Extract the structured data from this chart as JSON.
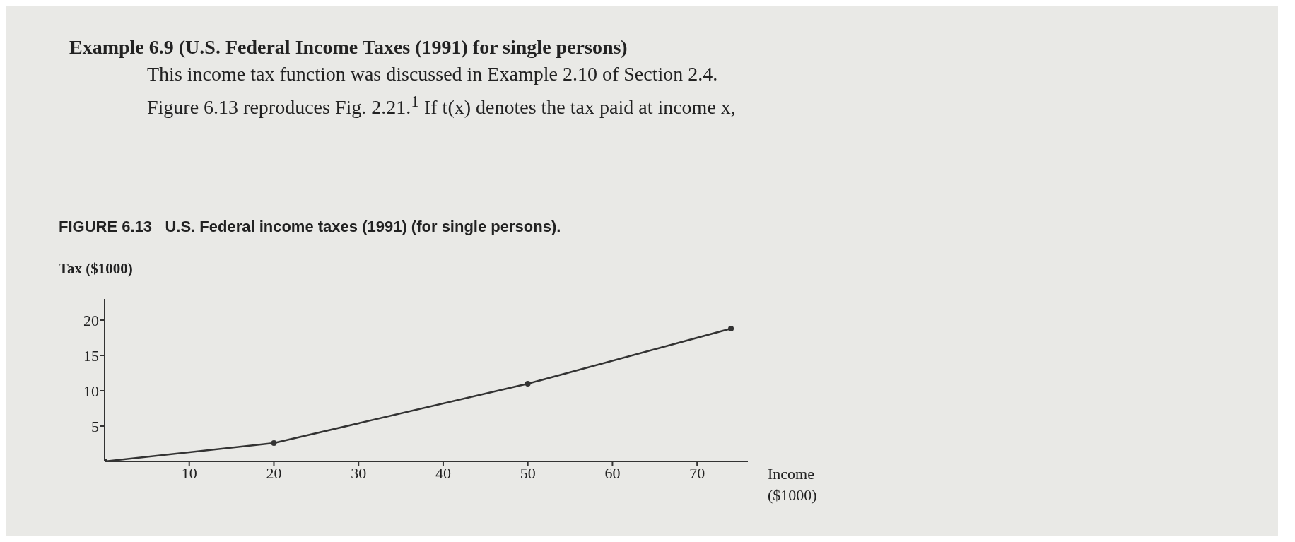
{
  "chart_data": {
    "type": "line",
    "title": "FIGURE 6.13   U.S. Federal income taxes (1991) (for single persons).",
    "annotations": [
      "Example 6.9   (U.S. Federal Income Taxes (1991) for single persons)",
      "This income tax function was discussed in Example 2.10 of Section 2.4.",
      "Figure 6.13 reproduces Fig. 2.21.$^{1}$ If t(x) denotes the tax paid at income x,"
    ],
    "xlabel": "Income ($1000)",
    "ylabel": "Tax ($1000)",
    "series": [
      {
        "color": "#333333",
        "x": [
          0,
          20,
          50,
          74
        ],
        "values": [
          0,
          2.6,
          11,
          18.8
        ]
      }
    ],
    "xlim": [
      0,
      76
    ],
    "ylim": [
      0,
      23
    ],
    "xticks": [
      10,
      20,
      30,
      40,
      50,
      60,
      70
    ],
    "yticks": [
      5,
      10,
      15,
      20
    ],
    "marker": "circle",
    "line_style": "solid"
  }
}
